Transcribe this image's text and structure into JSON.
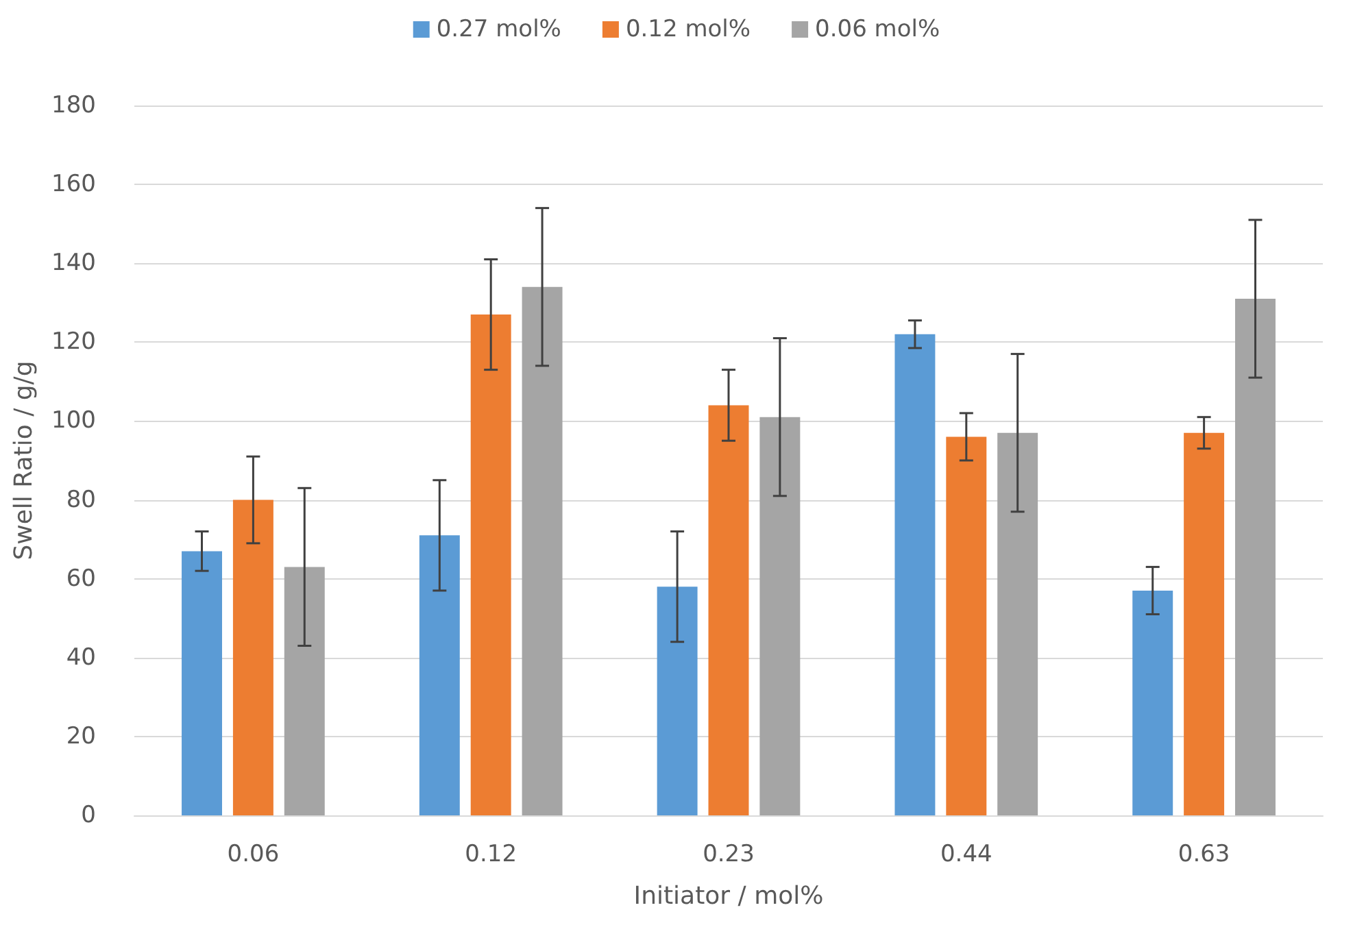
{
  "chart_data": {
    "type": "bar",
    "xlabel": "Initiator / mol%",
    "ylabel": "Swell Ratio / g/g",
    "categories": [
      "0.06",
      "0.12",
      "0.23",
      "0.44",
      "0.63"
    ],
    "series": [
      {
        "name": "0.27 mol%",
        "color": "#5b9bd5",
        "values": [
          67,
          71,
          58,
          122,
          57
        ],
        "errors": [
          5,
          14,
          14,
          3.5,
          6
        ]
      },
      {
        "name": "0.12 mol%",
        "color": "#ed7d31",
        "values": [
          80,
          127,
          104,
          96,
          97
        ],
        "errors": [
          11,
          14,
          9,
          6,
          4
        ]
      },
      {
        "name": "0.06 mol%",
        "color": "#a5a5a5",
        "values": [
          63,
          134,
          101,
          97,
          131
        ],
        "errors": [
          20,
          20,
          20,
          20,
          20
        ]
      }
    ],
    "ylim": [
      0,
      180
    ],
    "yticks": [
      0,
      20,
      40,
      60,
      80,
      100,
      120,
      140,
      160,
      180
    ],
    "grid": "y",
    "legend": "top"
  }
}
